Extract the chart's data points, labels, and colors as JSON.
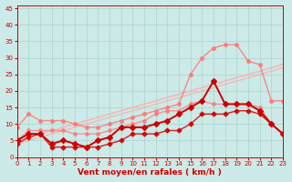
{
  "x": [
    0,
    1,
    2,
    3,
    4,
    5,
    6,
    7,
    8,
    9,
    10,
    11,
    12,
    13,
    14,
    15,
    16,
    17,
    18,
    19,
    20,
    21,
    22,
    23
  ],
  "line_straight1": [
    5,
    6,
    7,
    8,
    9,
    10,
    11,
    12,
    13,
    14,
    15,
    16,
    17,
    18,
    19,
    20,
    21,
    22,
    23,
    24,
    25,
    26,
    27,
    28
  ],
  "line_straight2": [
    4,
    5,
    6,
    7,
    8,
    9,
    10,
    11,
    12,
    13,
    14,
    15,
    16,
    17,
    18,
    19,
    20,
    21,
    22,
    23,
    24,
    25,
    26,
    27
  ],
  "line_med1": [
    9,
    13,
    11,
    11,
    11,
    10,
    9,
    9,
    10,
    11,
    12,
    13,
    14,
    15,
    16,
    25,
    30,
    33,
    34,
    34,
    29,
    28,
    17,
    17
  ],
  "line_med2": [
    5,
    8,
    8,
    8,
    8,
    7,
    7,
    7,
    8,
    9,
    10,
    11,
    13,
    14,
    14,
    16,
    17,
    16,
    16,
    16,
    16,
    15,
    10,
    7
  ],
  "line_dark1": [
    5,
    7,
    7,
    4,
    5,
    4,
    3,
    5,
    6,
    9,
    9,
    9,
    10,
    11,
    13,
    15,
    17,
    23,
    16,
    16,
    16,
    14,
    10,
    7
  ],
  "line_dark2": [
    4,
    6,
    7,
    3,
    3,
    3,
    3,
    3,
    4,
    5,
    7,
    7,
    7,
    8,
    8,
    10,
    13,
    13,
    13,
    14,
    14,
    13,
    10,
    7
  ],
  "background_color": "#cceae7",
  "grid_color": "#aad4d0",
  "colors": [
    "#ffaaaa",
    "#ffaaaa",
    "#ff7777",
    "#ff7777",
    "#cc0000",
    "#cc0000"
  ],
  "linewidths": [
    1.2,
    1.2,
    1.0,
    1.0,
    1.4,
    1.0
  ],
  "alphas": [
    0.75,
    0.65,
    0.85,
    0.75,
    1.0,
    0.85
  ],
  "markers": [
    "o",
    "o",
    "o",
    "o",
    "D",
    "D"
  ],
  "marker_sizes": [
    2.5,
    2.5,
    2.5,
    2.5,
    3.0,
    2.5
  ],
  "xlabel": "Vent moyen/en rafales ( km/h )",
  "ylim": [
    0,
    46
  ],
  "xlim": [
    0,
    23
  ],
  "yticks": [
    0,
    5,
    10,
    15,
    20,
    25,
    30,
    35,
    40,
    45
  ],
  "xticks": [
    0,
    1,
    2,
    3,
    4,
    5,
    6,
    7,
    8,
    9,
    10,
    11,
    12,
    13,
    14,
    15,
    16,
    17,
    18,
    19,
    20,
    21,
    22,
    23
  ],
  "label_color": "#cc0000",
  "tick_color": "#cc0000",
  "axis_color": "#cc0000"
}
